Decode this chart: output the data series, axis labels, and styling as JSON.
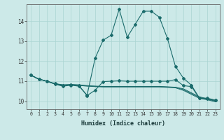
{
  "xlabel": "Humidex (Indice chaleur)",
  "x_ticks": [
    0,
    1,
    2,
    3,
    4,
    5,
    6,
    7,
    8,
    9,
    10,
    11,
    12,
    13,
    14,
    15,
    16,
    17,
    18,
    19,
    20,
    21,
    22,
    23
  ],
  "y_ticks": [
    10,
    11,
    12,
    13,
    14
  ],
  "ylim": [
    9.6,
    14.85
  ],
  "xlim": [
    -0.5,
    23.5
  ],
  "bg_color": "#cce9e8",
  "grid_color": "#aad4d2",
  "line_color": "#1a6b6b",
  "main_y": [
    11.3,
    11.1,
    11.0,
    10.85,
    10.75,
    10.8,
    10.75,
    10.3,
    12.15,
    13.05,
    13.3,
    14.6,
    13.2,
    13.85,
    14.5,
    14.5,
    14.2,
    13.15,
    11.75,
    11.15,
    10.8,
    10.15,
    10.15,
    10.05
  ],
  "zigzag_y": [
    11.3,
    11.1,
    11.0,
    10.88,
    10.78,
    10.82,
    10.78,
    10.28,
    10.55,
    10.98,
    11.0,
    11.02,
    11.0,
    11.0,
    11.0,
    11.0,
    11.0,
    11.0,
    11.08,
    10.78,
    10.73,
    10.15,
    10.12,
    10.05
  ],
  "flat1_y": [
    11.3,
    11.1,
    11.0,
    10.88,
    10.82,
    10.84,
    10.82,
    10.78,
    10.75,
    10.74,
    10.74,
    10.74,
    10.74,
    10.74,
    10.74,
    10.74,
    10.74,
    10.72,
    10.7,
    10.62,
    10.42,
    10.22,
    10.12,
    10.02
  ],
  "flat2_y": [
    11.3,
    11.1,
    11.0,
    10.87,
    10.81,
    10.82,
    10.8,
    10.77,
    10.75,
    10.73,
    10.73,
    10.73,
    10.73,
    10.73,
    10.73,
    10.73,
    10.73,
    10.71,
    10.69,
    10.58,
    10.38,
    10.18,
    10.1,
    10.0
  ],
  "flat3_y": [
    11.3,
    11.1,
    11.0,
    10.86,
    10.8,
    10.81,
    10.79,
    10.75,
    10.73,
    10.71,
    10.71,
    10.71,
    10.71,
    10.71,
    10.71,
    10.71,
    10.71,
    10.69,
    10.67,
    10.54,
    10.34,
    10.14,
    10.07,
    9.97
  ]
}
